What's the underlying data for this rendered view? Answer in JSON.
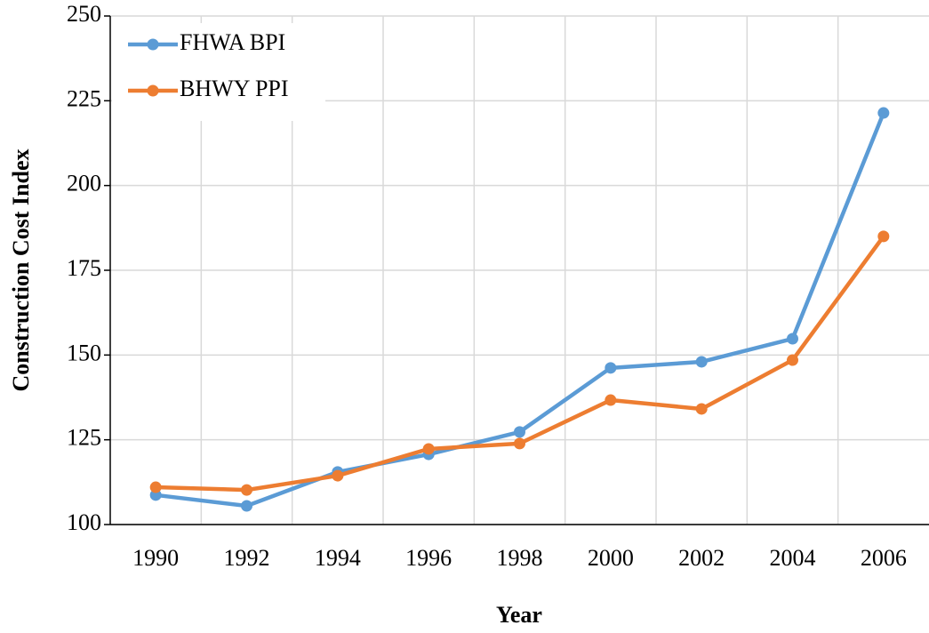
{
  "chart_data": {
    "type": "line",
    "x_label": "Year",
    "y_label": "Construction Cost Index",
    "categories": [
      "1990",
      "1992",
      "1994",
      "1996",
      "1998",
      "2000",
      "2002",
      "2004",
      "2006"
    ],
    "series": [
      {
        "name": "FHWA BPI",
        "color": "#5b9bd5",
        "values": [
          108.7,
          105.5,
          115.5,
          120.7,
          127.3,
          146.2,
          148.0,
          154.8,
          221.4
        ]
      },
      {
        "name": "BHWY PPI",
        "color": "#ed7d31",
        "values": [
          111.0,
          110.2,
          114.4,
          122.3,
          123.9,
          136.7,
          134.1,
          148.5,
          185.0
        ]
      }
    ],
    "ylim": [
      100,
      250
    ],
    "yticks": [
      100,
      125,
      150,
      175,
      200,
      225,
      250
    ],
    "grid": true,
    "legend": "upper left"
  }
}
